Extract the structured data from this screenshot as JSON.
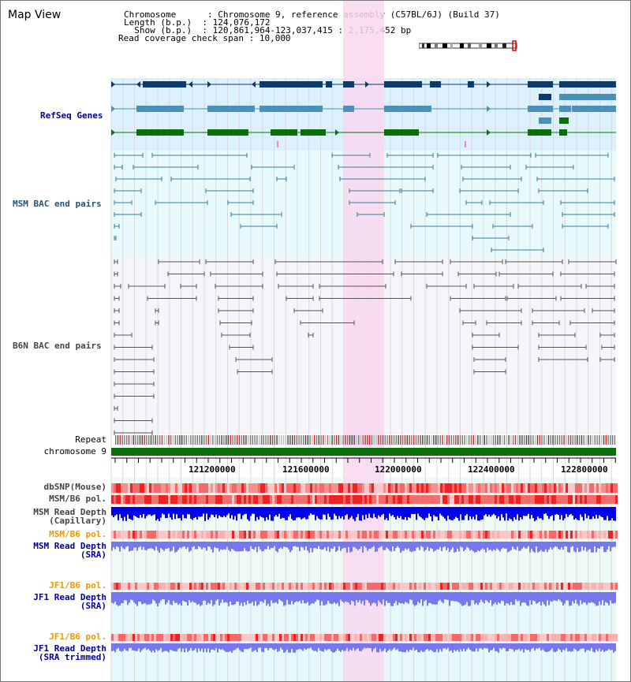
{
  "title": "Map View",
  "header": {
    "chromosome_label": "Chromosome      ",
    "chromosome_value": ": Chromosome 9, reference assembly (C57BL/6J) (Build 37)",
    "length_label": "Length (b.p.)  ",
    "length_value": ": 124,076,172",
    "show_label": "  Show (b.p.)  ",
    "show_value": ": 120,861,964-123,037,415 : 2,175,452 bp",
    "coverage_label": "Read coverage check span ",
    "coverage_value": ": 10,000"
  },
  "tracks": {
    "refseq": "RefSeq Genes",
    "msm_bac": "MSM BAC end pairs",
    "b6n_bac": "B6N BAC end pairs",
    "repeat": "Repeat",
    "chromosome": "chromosome 9",
    "dbsnp": "dbSNP(Mouse)",
    "msm_b6_pol": "MSM/B6 pol.",
    "msm_depth_cap_1": "MSM Read Depth",
    "msm_depth_cap_2": "(Capillary)",
    "msm_b6_pol2": "MSM/B6 pol.",
    "msm_depth_sra_1": "MSM Read Depth",
    "msm_depth_sra_2": "(SRA)",
    "jf1_pol": "JF1/B6 pol.",
    "jf1_depth_1": "JF1 Read Depth",
    "jf1_depth_2": "(SRA)",
    "jf1_pol2": "JF1/B6 pol.",
    "jf1_trim_1": "JF1 Read Depth",
    "jf1_trim_2": "(SRA trimmed)"
  },
  "axis": {
    "ticks": [
      "121200000",
      "121600000",
      "122000000",
      "122400000",
      "122800000"
    ],
    "range_start": 120861964,
    "range_end": 123037415
  },
  "colors": {
    "refseq_dark": "#0b3a6e",
    "refseq_mid": "#4a90b8",
    "refseq_green": "#0a6e0a",
    "msm_bac": "#3a7a9a",
    "b6n_bac": "#555555",
    "highlight": "#f8d8f0",
    "chromosome": "#0a6e0a",
    "depth_dark": "#0000ee",
    "depth_light": "#7777ee",
    "pol_red": "#ee3333",
    "label_blue": "#000099",
    "label_orange": "#ee9900",
    "label_gray": "#444444"
  }
}
